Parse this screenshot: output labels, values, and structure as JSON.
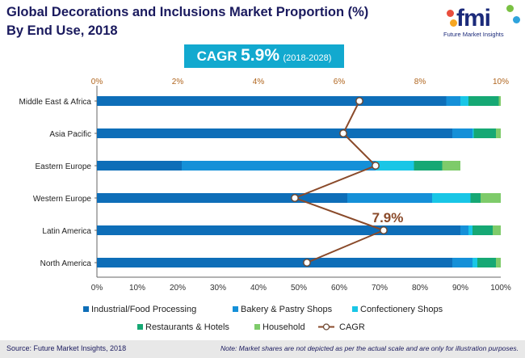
{
  "header": {
    "title_line1": "Global Decorations and Inclusions Market Proportion (%)",
    "title_line2": "By End Use, 2018",
    "logo_text": "fmi",
    "logo_sub": "Future Market Insights"
  },
  "cagr_banner": {
    "label": "CAGR",
    "value": "5.9%",
    "period": "(2018-2028)"
  },
  "chart_data": {
    "type": "bar",
    "orientation": "horizontal",
    "stacked": true,
    "categories": [
      "Middle East & Africa",
      "Asia Pacific",
      "Eastern Europe",
      "Western Europe",
      "Latin America",
      "North America"
    ],
    "series": [
      {
        "name": "Industrial/Food Processing",
        "color": "#0e6eb8",
        "values": [
          86.5,
          88,
          21,
          62,
          90,
          88
        ]
      },
      {
        "name": "Bakery & Pastry Shops",
        "color": "#1590d8",
        "values": [
          3.5,
          5,
          48,
          21,
          2,
          5
        ]
      },
      {
        "name": "Confectionery Shops",
        "color": "#19c6e6",
        "values": [
          2,
          0.3,
          9.5,
          9.5,
          1,
          1.2
        ]
      },
      {
        "name": "Restaurants & Hotels",
        "color": "#16a874",
        "values": [
          7.5,
          5.5,
          7,
          2.5,
          5,
          4.6
        ]
      },
      {
        "name": "Household",
        "color": "#7ecb6a",
        "values": [
          0.5,
          1.2,
          4.5,
          5,
          2,
          1.2
        ]
      }
    ],
    "cagr_line": {
      "name": "CAGR",
      "color": "#8a4a2a",
      "values": [
        6.5,
        6.1,
        6.9,
        4.9,
        7.1,
        5.2
      ]
    },
    "cagr_annotation": "7.9%",
    "top_axis": {
      "ticks": [
        "0%",
        "2%",
        "4%",
        "6%",
        "8%",
        "10%"
      ],
      "range": [
        0,
        10
      ]
    },
    "bottom_axis": {
      "ticks": [
        "0%",
        "10%",
        "20%",
        "30%",
        "40%",
        "50%",
        "60%",
        "70%",
        "80%",
        "90%",
        "100%"
      ],
      "range": [
        0,
        100
      ]
    },
    "grid": false,
    "legend_position": "bottom"
  },
  "footer": {
    "source": "Source: Future Market Insights, 2018",
    "note": "Note: Market shares are not depicted as per the actual scale and are only for illustration purposes."
  }
}
